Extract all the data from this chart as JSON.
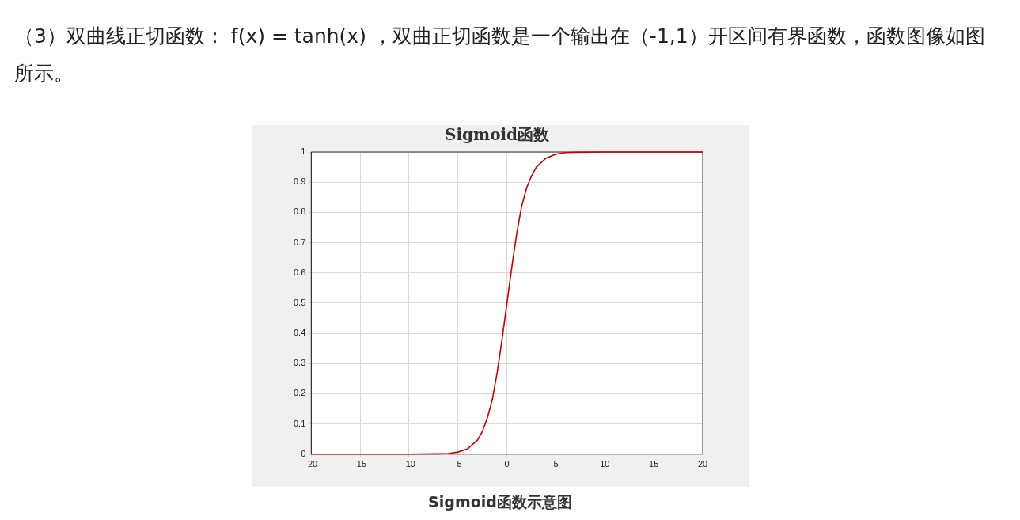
{
  "chart_data": {
    "type": "line",
    "title": "Sigmoid函数",
    "annotations": [
      "（3）双曲线正切函数： f(x) = tanh(x) ，双曲正切函数是一个输出在（-1,1）开区间有界函数，函数图像如图所示。",
      "Sigmoid函数示意图"
    ],
    "x": [
      -20,
      -10,
      -7,
      -6,
      -5,
      -4,
      -3,
      -2.5,
      -2,
      -1.5,
      -1,
      -0.5,
      0,
      0.5,
      1,
      1.5,
      2,
      2.5,
      3,
      4,
      5,
      6,
      7,
      10,
      20
    ],
    "series": [
      {
        "color": "#cc0000",
        "values": [
          0,
          0,
          0.001,
          0.002,
          0.007,
          0.018,
          0.047,
          0.076,
          0.12,
          0.18,
          0.27,
          0.38,
          0.5,
          0.62,
          0.73,
          0.82,
          0.88,
          0.92,
          0.95,
          0.98,
          0.993,
          0.998,
          0.999,
          1,
          1
        ]
      }
    ],
    "xlim": [
      -20,
      20
    ],
    "xticks": [
      -20,
      -15,
      -10,
      -5,
      0,
      5,
      10,
      15,
      20
    ],
    "ylim": [
      0,
      1
    ],
    "yticks": [
      0,
      0.1,
      0.2,
      0.3,
      0.4,
      0.5,
      0.6,
      0.7,
      0.8,
      0.9,
      1
    ],
    "grid": true,
    "marker": "none",
    "line_style": "solid",
    "legend": false
  }
}
